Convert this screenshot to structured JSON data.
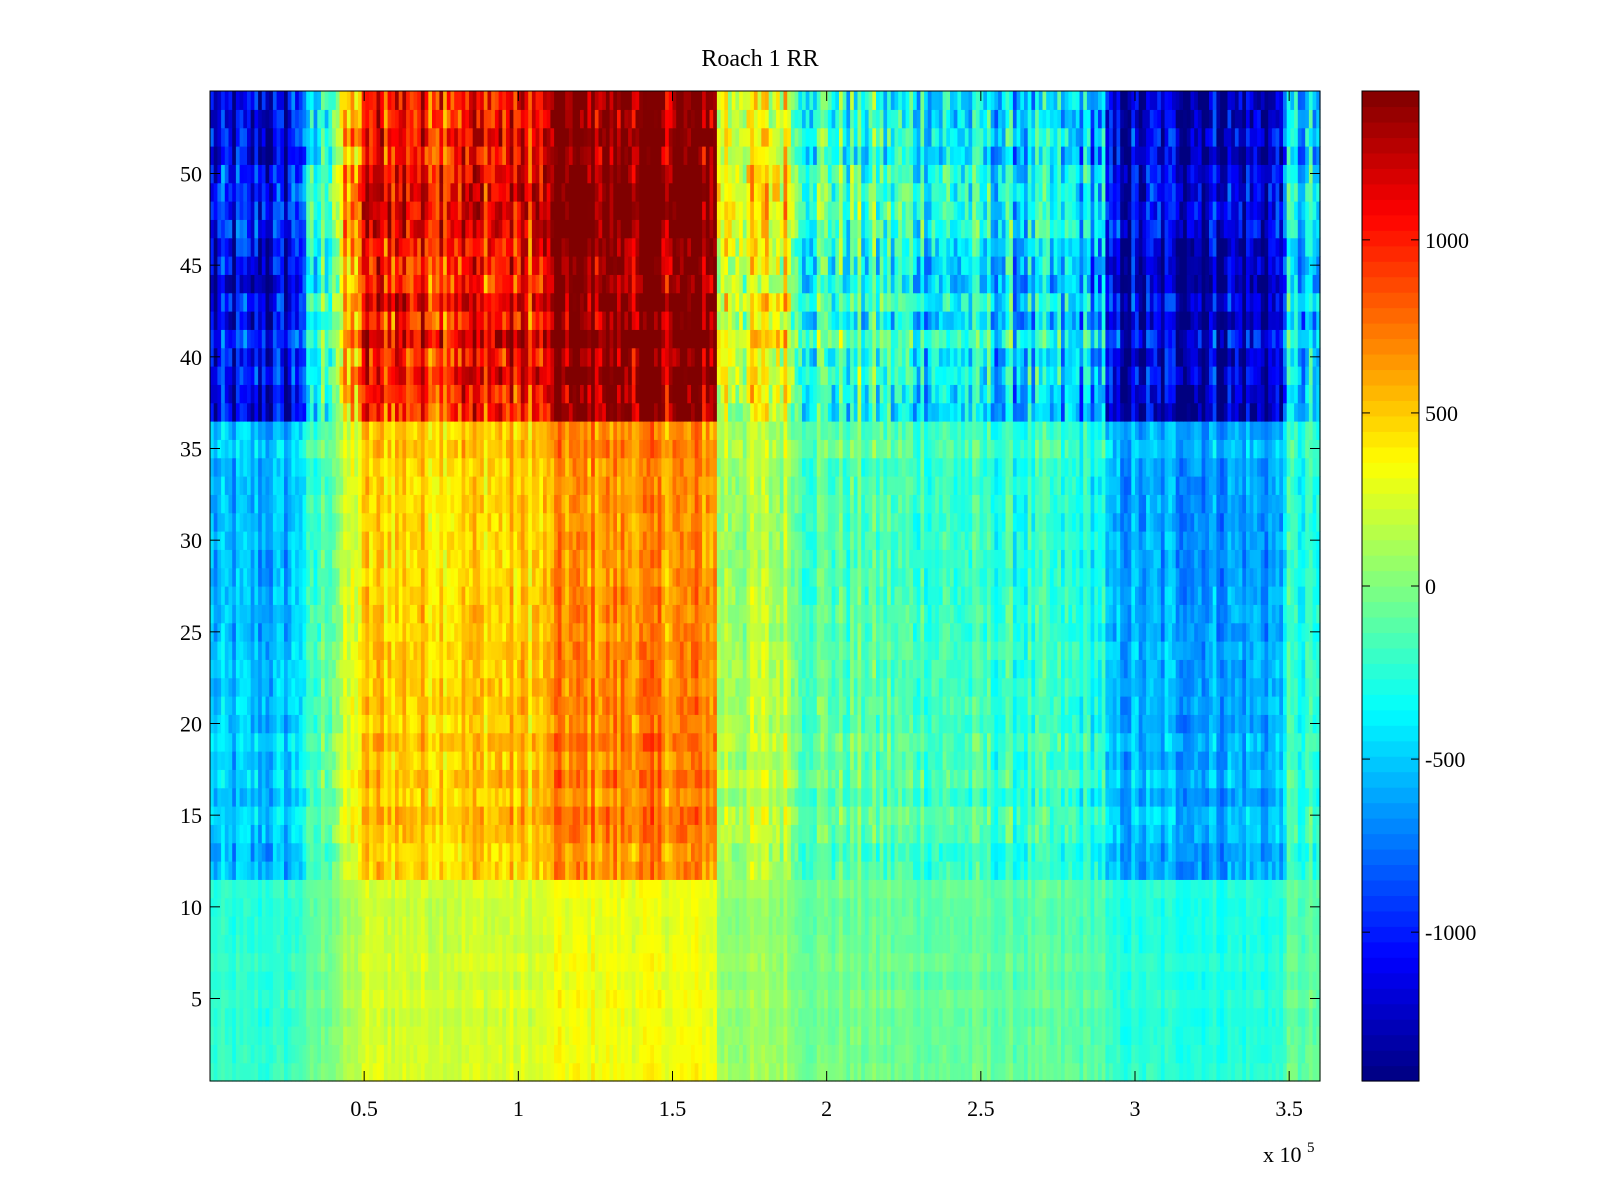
{
  "chart_data": {
    "type": "heatmap",
    "title": "Roach 1 RR",
    "xlabel": "",
    "ylabel": "",
    "x_multiplier_label": {
      "base": "x 10",
      "exponent": "5"
    },
    "xlim": [
      0,
      3.6
    ],
    "ylim": [
      0.5,
      54.5
    ],
    "x_ticks": [
      {
        "value": 0.5,
        "label": "0.5"
      },
      {
        "value": 1,
        "label": "1"
      },
      {
        "value": 1.5,
        "label": "1.5"
      },
      {
        "value": 2,
        "label": "2"
      },
      {
        "value": 2.5,
        "label": "2.5"
      },
      {
        "value": 3,
        "label": "3"
      },
      {
        "value": 3.5,
        "label": "3.5"
      }
    ],
    "y_ticks": [
      {
        "value": 5,
        "label": "5"
      },
      {
        "value": 10,
        "label": "10"
      },
      {
        "value": 15,
        "label": "15"
      },
      {
        "value": 20,
        "label": "20"
      },
      {
        "value": 25,
        "label": "25"
      },
      {
        "value": 30,
        "label": "30"
      },
      {
        "value": 35,
        "label": "35"
      },
      {
        "value": 40,
        "label": "40"
      },
      {
        "value": 45,
        "label": "45"
      },
      {
        "value": 50,
        "label": "50"
      }
    ],
    "colorbar": {
      "colormap": "jet",
      "clim": [
        -1430,
        1430
      ],
      "ticks": [
        {
          "value": 1000,
          "label": "1000"
        },
        {
          "value": 500,
          "label": "500"
        },
        {
          "value": 0,
          "label": "0"
        },
        {
          "value": -500,
          "label": "-500"
        },
        {
          "value": -1000,
          "label": "-1000"
        }
      ]
    },
    "rows": 54,
    "grid": false,
    "approx_structure": {
      "column_bands": [
        {
          "x_range": [
            0.0,
            0.25
          ],
          "level": "cold"
        },
        {
          "x_range": [
            0.5,
            1.1
          ],
          "level": "warm"
        },
        {
          "x_range": [
            1.1,
            1.65
          ],
          "level": "hot"
        },
        {
          "x_range": [
            1.65,
            2.9
          ],
          "level": "neutral"
        },
        {
          "x_range": [
            2.9,
            3.5
          ],
          "level": "cold"
        }
      ],
      "row_bands": [
        {
          "y_range": [
            37,
            54
          ],
          "intensity": "strong"
        },
        {
          "y_range": [
            12,
            37
          ],
          "intensity": "medium"
        },
        {
          "y_range": [
            1,
            12
          ],
          "intensity": "weak"
        }
      ]
    }
  }
}
